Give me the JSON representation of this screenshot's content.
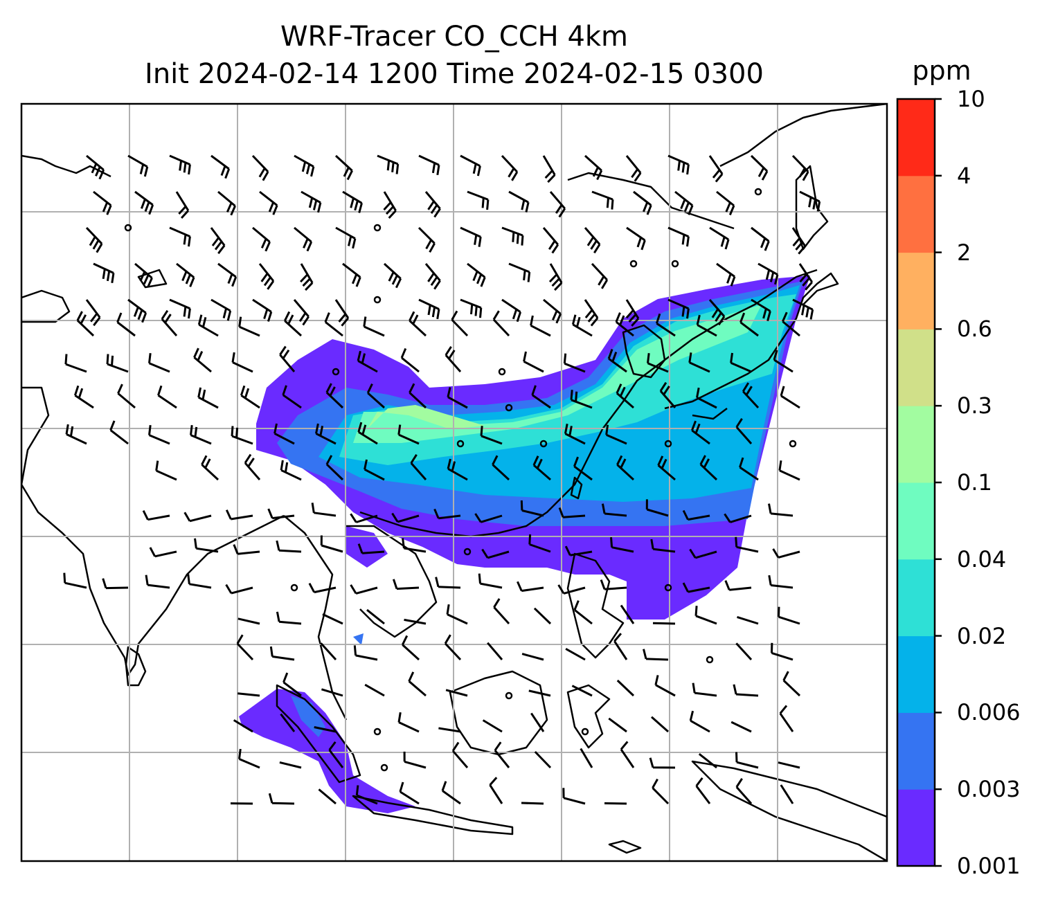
{
  "title": {
    "line1": "WRF-Tracer CO_CCH 4km",
    "line2": "Init 2024-02-14 1200 Time 2024-02-15 0300"
  },
  "colorbar": {
    "unit": "ppm",
    "levels": [
      "0.001",
      "0.003",
      "0.006",
      "0.02",
      "0.04",
      "0.1",
      "0.3",
      "0.6",
      "2",
      "4",
      "10"
    ],
    "colors": [
      "#6a2bff",
      "#3574f2",
      "#04b2ea",
      "#2ee0d6",
      "#6ffcc0",
      "#a2fca0",
      "#d0e089",
      "#ffb060",
      "#ff7040",
      "#ff2a18"
    ]
  },
  "map": {
    "gridlines": true,
    "coastline_color": "#000000",
    "field": "CO_CCH tracer concentration",
    "wind_barbs": true
  }
}
